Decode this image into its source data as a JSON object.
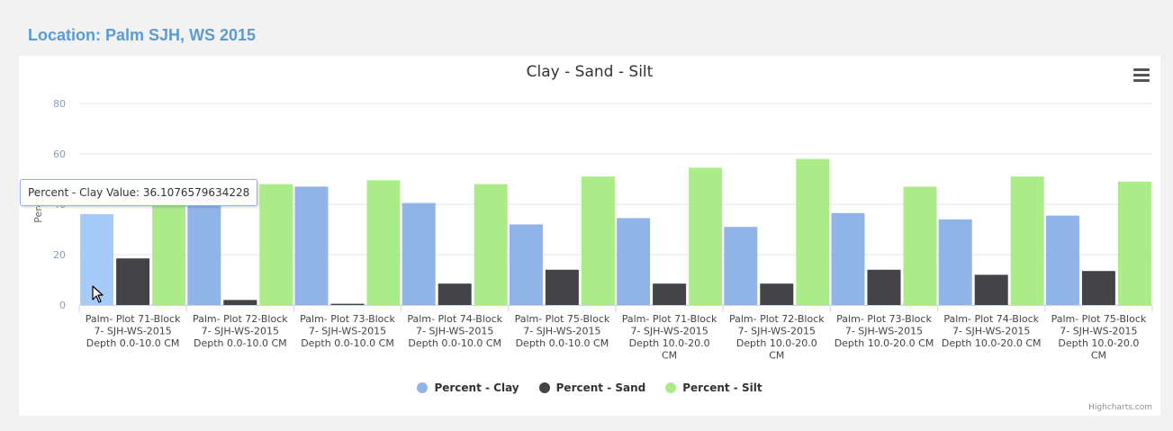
{
  "page": {
    "location_title": "Location: Palm SJH, WS 2015",
    "credit": "Highcharts.com",
    "menu_icon": "hamburger-menu-icon",
    "cursor_icon": "arrow-cursor-icon"
  },
  "tooltip": {
    "text": "Percent - Clay Value: 36.1076579634228"
  },
  "chart_data": {
    "type": "bar",
    "title": "Clay - Sand - Silt",
    "ylabel": "Percent",
    "ylim": [
      0,
      80
    ],
    "yticks": [
      0,
      20,
      40,
      60,
      80
    ],
    "grid": true,
    "legend_position": "bottom-center",
    "categories": [
      [
        "Palm- Plot 71-Block",
        "7- SJH-WS-2015",
        "Depth 0.0-10.0 CM"
      ],
      [
        "Palm- Plot 72-Block",
        "7- SJH-WS-2015",
        "Depth 0.0-10.0 CM"
      ],
      [
        "Palm- Plot 73-Block",
        "7- SJH-WS-2015",
        "Depth 0.0-10.0 CM"
      ],
      [
        "Palm- Plot 74-Block",
        "7- SJH-WS-2015",
        "Depth 0.0-10.0 CM"
      ],
      [
        "Palm- Plot 75-Block",
        "7- SJH-WS-2015",
        "Depth 0.0-10.0 CM"
      ],
      [
        "Palm- Plot 71-Block",
        "7- SJH-WS-2015",
        "Depth 10.0-20.0",
        "CM"
      ],
      [
        "Palm- Plot 72-Block",
        "7- SJH-WS-2015",
        "Depth 10.0-20.0",
        "CM"
      ],
      [
        "Palm- Plot 73-Block",
        "7- SJH-WS-2015",
        "Depth 10.0-20.0 CM"
      ],
      [
        "Palm- Plot 74-Block",
        "7- SJH-WS-2015",
        "Depth 10.0-20.0 CM"
      ],
      [
        "Palm- Plot 75-Block",
        "7- SJH-WS-2015",
        "Depth 10.0-20.0",
        "CM"
      ]
    ],
    "series": [
      {
        "name": "Percent - Clay",
        "color": "#90b4e8",
        "values": [
          36.1,
          43,
          47,
          40.5,
          32,
          34.5,
          31,
          36.5,
          34,
          35.5
        ]
      },
      {
        "name": "Percent - Sand",
        "color": "#434348",
        "values": [
          18.5,
          2,
          0.5,
          8.5,
          14,
          8.5,
          8.5,
          14,
          12,
          13.5
        ]
      },
      {
        "name": "Percent - Silt",
        "color": "#acec88",
        "values": [
          42,
          48,
          49.5,
          48,
          51,
          54.5,
          58,
          47,
          51,
          49
        ]
      }
    ],
    "highlight": {
      "series": 0,
      "index": 0,
      "color": "#a6cbf8"
    }
  }
}
